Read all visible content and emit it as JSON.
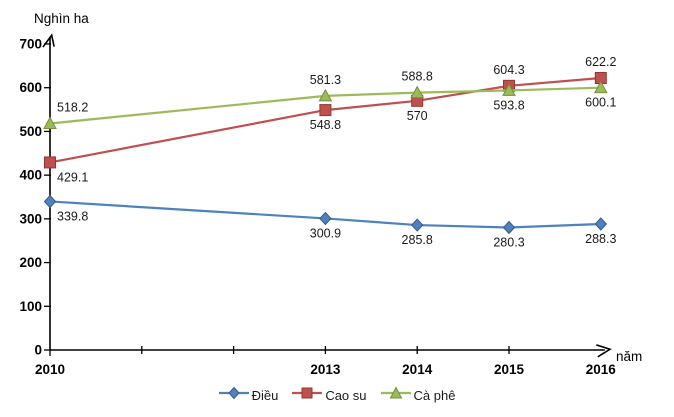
{
  "chart_data": {
    "type": "line",
    "title": "",
    "ylabel": "Nghìn ha",
    "xlabel": "năm",
    "x": [
      2010,
      2013,
      2014,
      2015,
      2016
    ],
    "xlim": [
      2010,
      2016
    ],
    "ylim": [
      0,
      700
    ],
    "yticks": [
      0,
      100,
      200,
      300,
      400,
      500,
      600,
      700
    ],
    "xtick_labels": [
      2010,
      2013,
      2014,
      2015,
      2016
    ],
    "xticks_minor": [
      2011,
      2012,
      2013,
      2014,
      2015
    ],
    "grid": false,
    "legend_position": "bottom",
    "axis_color": "#000000",
    "series": [
      {
        "name": "Điều",
        "marker": "diamond",
        "color": "#4f81bd",
        "edge_color": "#36598c",
        "values": [
          339.8,
          300.9,
          285.8,
          280.3,
          288.3
        ],
        "label_pos": [
          "below",
          "below",
          "below",
          "below",
          "below"
        ]
      },
      {
        "name": "Cao su",
        "marker": "square",
        "color": "#c0504d",
        "edge_color": "#8e3835",
        "values": [
          429.1,
          548.8,
          570,
          604.3,
          622.2
        ],
        "label_pos": [
          "below",
          "below",
          "below",
          "above",
          "above"
        ]
      },
      {
        "name": "Cà phê",
        "marker": "triangle",
        "color": "#9bbb59",
        "edge_color": "#74903e",
        "values": [
          518.2,
          581.3,
          588.8,
          593.8,
          600.1
        ],
        "label_pos": [
          "above",
          "above",
          "above",
          "below",
          "below"
        ]
      }
    ]
  }
}
